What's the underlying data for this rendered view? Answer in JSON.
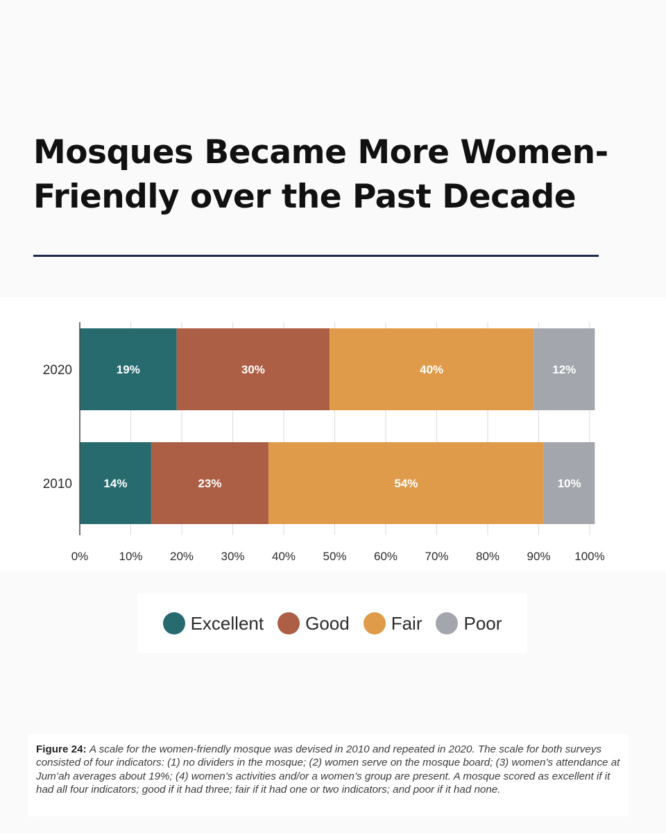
{
  "title": "Mosques Became More Women-Friendly over the Past Decade",
  "colors": {
    "excellent": "#276b6f",
    "good": "#ac5f45",
    "fair": "#df9b4a",
    "poor": "#a3a6ad",
    "title_rule": "#1b2a4a"
  },
  "chart_data": {
    "type": "bar",
    "orientation": "horizontal",
    "stacked": true,
    "categories": [
      "2020",
      "2010"
    ],
    "series": [
      {
        "name": "Excellent",
        "values": [
          19,
          14
        ],
        "labels": [
          "19%",
          "14%"
        ]
      },
      {
        "name": "Good",
        "values": [
          30,
          23
        ],
        "labels": [
          "30%",
          "23%"
        ]
      },
      {
        "name": "Fair",
        "values": [
          40,
          54
        ],
        "labels": [
          "40%",
          "54%"
        ]
      },
      {
        "name": "Poor",
        "values": [
          12,
          10
        ],
        "labels": [
          "12%",
          "10%"
        ]
      }
    ],
    "x_ticks": [
      "0%",
      "10%",
      "20%",
      "30%",
      "40%",
      "50%",
      "60%",
      "70%",
      "80%",
      "90%",
      "100%"
    ],
    "xlim": [
      0,
      100
    ],
    "grid": true,
    "legend_position": "bottom"
  },
  "legend": [
    {
      "label": "Excellent",
      "color": "#276b6f"
    },
    {
      "label": "Good",
      "color": "#ac5f45"
    },
    {
      "label": "Fair",
      "color": "#df9b4a"
    },
    {
      "label": "Poor",
      "color": "#a3a6ad"
    }
  ],
  "caption": {
    "label": "Figure 24:",
    "text": "A scale for the women-friendly mosque was devised in 2010 and repeated in 2020. The scale for both surveys consisted of four indicators: (1) no dividers in the mosque; (2) women serve on the mosque board; (3) women’s attendance at Jum’ah averages about 19%; (4) women’s activities and/or a women’s group are present. A mosque scored as excellent if it had all four indicators; good if it had three; fair if it had one or two indicators; and poor if it had none."
  }
}
